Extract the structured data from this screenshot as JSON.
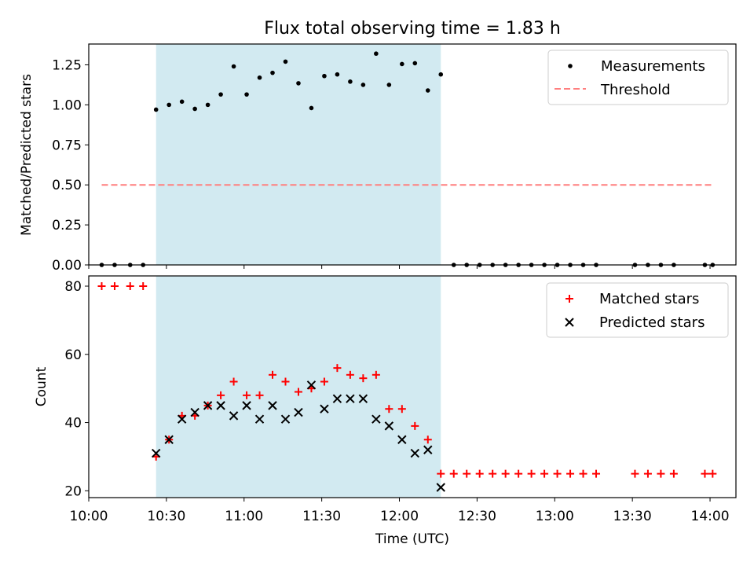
{
  "chart_data": {
    "title": "Flux total observing time = 1.83 h",
    "xlabel": "Time (UTC)",
    "x_unit": "time of day, HH:MM",
    "xlim": [
      "10:00",
      "14:10"
    ],
    "xticks": [
      "10:00",
      "10:30",
      "11:00",
      "11:30",
      "12:00",
      "12:30",
      "13:00",
      "13:30",
      "14:00"
    ],
    "highlight_span": {
      "start": "10:26",
      "end": "12:16",
      "color": "#add8e6"
    },
    "colors": {
      "measurements": "#000000",
      "threshold": "#ff7f7f",
      "matched": "#ff0000",
      "predicted": "#000000"
    },
    "subplots": [
      {
        "type": "scatter",
        "ylabel": "Matched/Predicted stars",
        "ylim": [
          0,
          1.38
        ],
        "yticks": [
          "0.00",
          "0.25",
          "0.50",
          "0.75",
          "1.00",
          "1.25"
        ],
        "legend": {
          "placement": "top-right",
          "entries": [
            "Measurements",
            "Threshold"
          ]
        },
        "series": [
          {
            "name": "Measurements",
            "marker": "dot",
            "points": [
              [
                "10:05",
                0.0
              ],
              [
                "10:10",
                0.0
              ],
              [
                "10:16",
                0.0
              ],
              [
                "10:21",
                0.0
              ],
              [
                "10:26",
                0.97
              ],
              [
                "10:31",
                1.0
              ],
              [
                "10:36",
                1.02
              ],
              [
                "10:41",
                0.975
              ],
              [
                "10:46",
                1.0
              ],
              [
                "10:51",
                1.065
              ],
              [
                "10:56",
                1.24
              ],
              [
                "11:01",
                1.065
              ],
              [
                "11:06",
                1.17
              ],
              [
                "11:11",
                1.2
              ],
              [
                "11:16",
                1.27
              ],
              [
                "11:21",
                1.135
              ],
              [
                "11:26",
                0.98
              ],
              [
                "11:31",
                1.18
              ],
              [
                "11:36",
                1.19
              ],
              [
                "11:41",
                1.145
              ],
              [
                "11:46",
                1.125
              ],
              [
                "11:51",
                1.32
              ],
              [
                "11:56",
                1.125
              ],
              [
                "12:01",
                1.255
              ],
              [
                "12:06",
                1.26
              ],
              [
                "12:11",
                1.09
              ],
              [
                "12:16",
                1.19
              ],
              [
                "12:21",
                0.0
              ],
              [
                "12:26",
                0.0
              ],
              [
                "12:31",
                0.0
              ],
              [
                "12:36",
                0.0
              ],
              [
                "12:41",
                0.0
              ],
              [
                "12:46",
                0.0
              ],
              [
                "12:51",
                0.0
              ],
              [
                "12:56",
                0.0
              ],
              [
                "13:01",
                0.0
              ],
              [
                "13:06",
                0.0
              ],
              [
                "13:11",
                0.0
              ],
              [
                "13:16",
                0.0
              ],
              [
                "13:31",
                0.0
              ],
              [
                "13:36",
                0.0
              ],
              [
                "13:41",
                0.0
              ],
              [
                "13:46",
                0.0
              ],
              [
                "13:58",
                0.0
              ],
              [
                "14:01",
                0.0
              ]
            ]
          },
          {
            "name": "Threshold",
            "line": "dashed",
            "points": [
              [
                "10:05",
                0.5
              ],
              [
                "14:01",
                0.5
              ]
            ]
          }
        ]
      },
      {
        "type": "scatter",
        "ylabel": "Count",
        "ylim": [
          18,
          83
        ],
        "yticks": [
          "20",
          "40",
          "60",
          "80"
        ],
        "legend": {
          "placement": "top-right",
          "entries": [
            "Matched stars",
            "Predicted stars"
          ]
        },
        "series": [
          {
            "name": "Matched stars",
            "marker": "plus",
            "points": [
              [
                "10:05",
                80
              ],
              [
                "10:10",
                80
              ],
              [
                "10:16",
                80
              ],
              [
                "10:21",
                80
              ],
              [
                "10:26",
                30
              ],
              [
                "10:31",
                35
              ],
              [
                "10:36",
                42
              ],
              [
                "10:41",
                42
              ],
              [
                "10:46",
                45
              ],
              [
                "10:51",
                48
              ],
              [
                "10:56",
                52
              ],
              [
                "11:01",
                48
              ],
              [
                "11:06",
                48
              ],
              [
                "11:11",
                54
              ],
              [
                "11:16",
                52
              ],
              [
                "11:21",
                49
              ],
              [
                "11:26",
                50
              ],
              [
                "11:31",
                52
              ],
              [
                "11:36",
                56
              ],
              [
                "11:41",
                54
              ],
              [
                "11:46",
                53
              ],
              [
                "11:51",
                54
              ],
              [
                "11:56",
                44
              ],
              [
                "12:01",
                44
              ],
              [
                "12:06",
                39
              ],
              [
                "12:11",
                35
              ],
              [
                "12:16",
                25
              ],
              [
                "12:21",
                25
              ],
              [
                "12:26",
                25
              ],
              [
                "12:31",
                25
              ],
              [
                "12:36",
                25
              ],
              [
                "12:41",
                25
              ],
              [
                "12:46",
                25
              ],
              [
                "12:51",
                25
              ],
              [
                "12:56",
                25
              ],
              [
                "13:01",
                25
              ],
              [
                "13:06",
                25
              ],
              [
                "13:11",
                25
              ],
              [
                "13:16",
                25
              ],
              [
                "13:31",
                25
              ],
              [
                "13:36",
                25
              ],
              [
                "13:41",
                25
              ],
              [
                "13:46",
                25
              ],
              [
                "13:58",
                25
              ],
              [
                "14:01",
                25
              ]
            ]
          },
          {
            "name": "Predicted stars",
            "marker": "x",
            "points": [
              [
                "10:26",
                31
              ],
              [
                "10:31",
                35
              ],
              [
                "10:36",
                41
              ],
              [
                "10:41",
                43
              ],
              [
                "10:46",
                45
              ],
              [
                "10:51",
                45
              ],
              [
                "10:56",
                42
              ],
              [
                "11:01",
                45
              ],
              [
                "11:06",
                41
              ],
              [
                "11:11",
                45
              ],
              [
                "11:16",
                41
              ],
              [
                "11:21",
                43
              ],
              [
                "11:26",
                51
              ],
              [
                "11:31",
                44
              ],
              [
                "11:36",
                47
              ],
              [
                "11:41",
                47
              ],
              [
                "11:46",
                47
              ],
              [
                "11:51",
                41
              ],
              [
                "11:56",
                39
              ],
              [
                "12:01",
                35
              ],
              [
                "12:06",
                31
              ],
              [
                "12:11",
                32
              ],
              [
                "12:16",
                21
              ]
            ]
          }
        ]
      }
    ]
  }
}
